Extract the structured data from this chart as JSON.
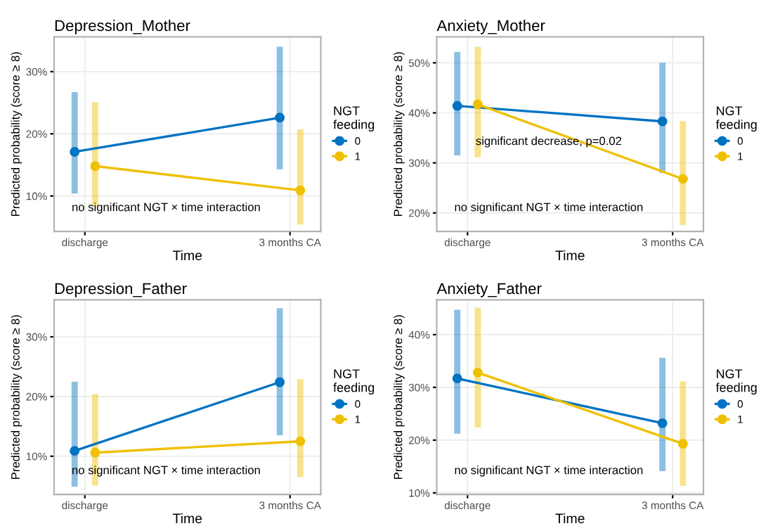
{
  "chart_data": [
    {
      "type": "line",
      "title": "Depression_Mother",
      "xlabel": "Time",
      "ylabel": "Predicted probability (score ≥ 8)",
      "legend_title": "NGT\nfeeding",
      "categories": [
        "discharge",
        "3 months CA"
      ],
      "series": [
        {
          "name": "0",
          "color": "#0073C2",
          "values": [
            17.1,
            22.6
          ],
          "errors": [
            [
              10.4,
              26.7
            ],
            [
              14.3,
              34.0
            ]
          ]
        },
        {
          "name": "1",
          "color": "#EFC000",
          "values": [
            14.8,
            10.9
          ],
          "errors": [
            [
              8.3,
              25.1
            ],
            [
              5.4,
              20.7
            ]
          ]
        }
      ],
      "ylim": [
        4.3,
        35.6
      ],
      "yticks": [
        {
          "value": 10,
          "label": "10%"
        },
        {
          "value": 20,
          "label": "20%"
        },
        {
          "value": 30,
          "label": "30%"
        }
      ],
      "annotations": [
        "no significant NGT × time interaction"
      ],
      "grid": true,
      "legend": "right",
      "marker": "circle",
      "line_style": "solid"
    },
    {
      "type": "line",
      "title": "Anxiety_Mother",
      "xlabel": "Time",
      "ylabel": "Predicted probability (score ≥ 8)",
      "legend_title": "NGT\nfeeding",
      "categories": [
        "discharge",
        "3 months CA"
      ],
      "series": [
        {
          "name": "0",
          "color": "#0073C2",
          "values": [
            41.4,
            38.3
          ],
          "errors": [
            [
              31.5,
              52.2
            ],
            [
              28.0,
              50.0
            ]
          ]
        },
        {
          "name": "1",
          "color": "#EFC000",
          "values": [
            41.7,
            26.8
          ],
          "errors": [
            [
              31.1,
              53.2
            ],
            [
              17.6,
              38.3
            ]
          ]
        }
      ],
      "ylim": [
        16.3,
        55.2
      ],
      "yticks": [
        {
          "value": 20,
          "label": "20%"
        },
        {
          "value": 30,
          "label": "30%"
        },
        {
          "value": 40,
          "label": "40%"
        },
        {
          "value": 50,
          "label": "50%"
        }
      ],
      "annotations": [
        "significant decrease, p=0.02",
        "no significant NGT × time interaction"
      ],
      "grid": true,
      "legend": "right",
      "marker": "circle",
      "line_style": "solid"
    },
    {
      "type": "line",
      "title": "Depression_Father",
      "xlabel": "Time",
      "ylabel": "Predicted probability (score ≥ 8)",
      "legend_title": "NGT\nfeeding",
      "categories": [
        "discharge",
        "3 months CA"
      ],
      "series": [
        {
          "name": "0",
          "color": "#0073C2",
          "values": [
            10.9,
            22.4
          ],
          "errors": [
            [
              4.9,
              22.5
            ],
            [
              13.5,
              34.8
            ]
          ]
        },
        {
          "name": "1",
          "color": "#EFC000",
          "values": [
            10.6,
            12.5
          ],
          "errors": [
            [
              5.1,
              20.4
            ],
            [
              6.5,
              22.9
            ]
          ]
        }
      ],
      "ylim": [
        3.6,
        36.2
      ],
      "yticks": [
        {
          "value": 10,
          "label": "10%"
        },
        {
          "value": 20,
          "label": "20%"
        },
        {
          "value": 30,
          "label": "30%"
        }
      ],
      "annotations": [
        "no significant NGT × time interaction"
      ],
      "grid": true,
      "legend": "right",
      "marker": "circle",
      "line_style": "solid"
    },
    {
      "type": "line",
      "title": "Anxiety_Father",
      "xlabel": "Time",
      "ylabel": "Predicted probability (score ≥ 8)",
      "legend_title": "NGT\nfeeding",
      "categories": [
        "discharge",
        "3 months CA"
      ],
      "series": [
        {
          "name": "0",
          "color": "#0073C2",
          "values": [
            31.7,
            23.2
          ],
          "errors": [
            [
              21.2,
              44.7
            ],
            [
              14.1,
              35.6
            ]
          ]
        },
        {
          "name": "1",
          "color": "#EFC000",
          "values": [
            32.8,
            19.3
          ],
          "errors": [
            [
              22.4,
              45.1
            ],
            [
              11.3,
              31.1
            ]
          ]
        }
      ],
      "ylim": [
        9.7,
        46.6
      ],
      "yticks": [
        {
          "value": 10,
          "label": "10%"
        },
        {
          "value": 20,
          "label": "20%"
        },
        {
          "value": 30,
          "label": "30%"
        },
        {
          "value": 40,
          "label": "40%"
        }
      ],
      "annotations": [
        "no significant NGT × time interaction"
      ],
      "grid": true,
      "legend": "right",
      "marker": "circle",
      "line_style": "solid"
    }
  ]
}
